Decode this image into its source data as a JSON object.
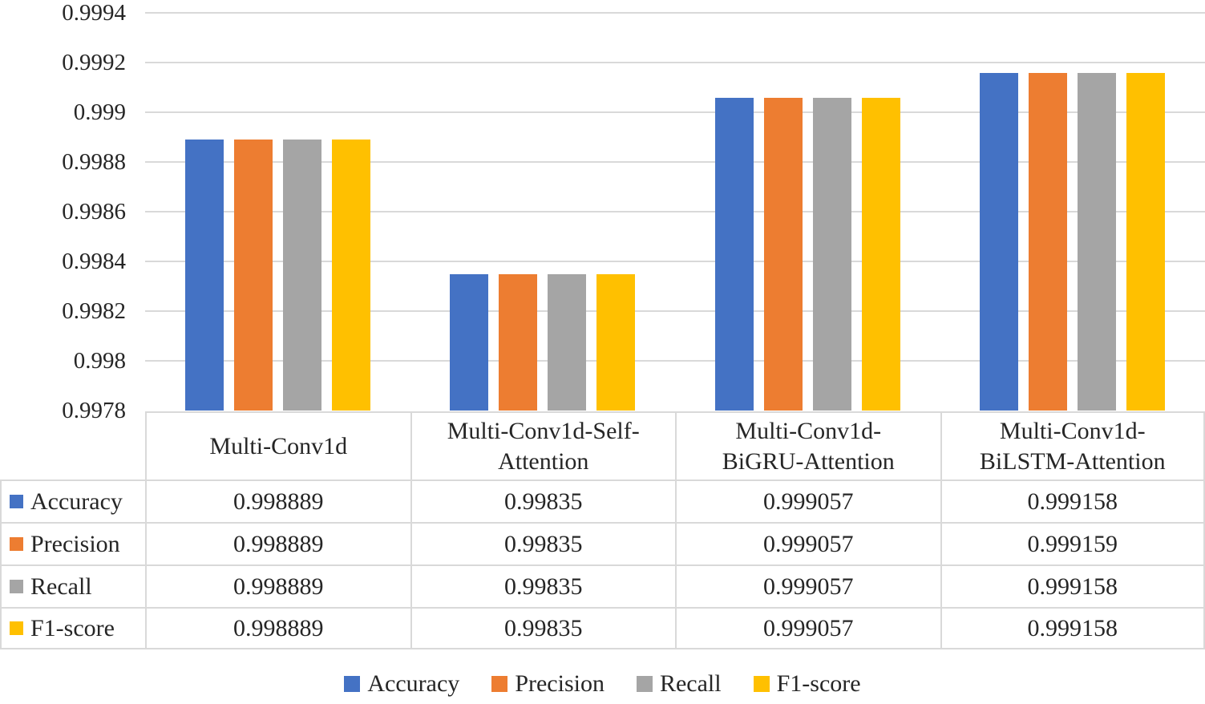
{
  "styles": {
    "text": "#262626",
    "gridline": "#D9D9D9",
    "table-border": "#D9D9D9"
  },
  "chart_data": {
    "type": "bar",
    "title": "",
    "xlabel": "",
    "ylabel": "",
    "grid": true,
    "legend_position": "bottom",
    "categories": [
      "Multi-Conv1d",
      "Multi-Conv1d-Self-Attention",
      "Multi-Conv1d-BiGRU-Attention",
      "Multi-Conv1d-BiLSTM-Attention"
    ],
    "series": [
      {
        "name": "Accuracy",
        "color": "#4472C4",
        "values": [
          0.998889,
          0.99835,
          0.999057,
          0.999158
        ]
      },
      {
        "name": "Precision",
        "color": "#ED7D31",
        "values": [
          0.998889,
          0.99835,
          0.999057,
          0.999159
        ]
      },
      {
        "name": "Recall",
        "color": "#A5A5A5",
        "values": [
          0.998889,
          0.99835,
          0.999057,
          0.999158
        ]
      },
      {
        "name": "F1-score",
        "color": "#FFC000",
        "values": [
          0.998889,
          0.99835,
          0.999057,
          0.999158
        ]
      }
    ],
    "ylim": [
      0.9978,
      0.9994
    ],
    "yticks": [
      "0.9994",
      "0.9992",
      "0.999",
      "0.9988",
      "0.9986",
      "0.9984",
      "0.9982",
      "0.998",
      "0.9978"
    ]
  },
  "table": {
    "columns": [
      "Multi-Conv1d",
      "Multi-Conv1d-Self-Attention",
      "Multi-Conv1d-BiGRU-Attention",
      "Multi-Conv1d-BiLSTM-Attention"
    ],
    "rows": [
      {
        "label": "Accuracy",
        "values": [
          "0.998889",
          "0.99835",
          "0.999057",
          "0.999158"
        ]
      },
      {
        "label": "Precision",
        "values": [
          "0.998889",
          "0.99835",
          "0.999057",
          "0.999159"
        ]
      },
      {
        "label": "Recall",
        "values": [
          "0.998889",
          "0.99835",
          "0.999057",
          "0.999158"
        ]
      },
      {
        "label": "F1-score",
        "values": [
          "0.998889",
          "0.99835",
          "0.999057",
          "0.999158"
        ]
      }
    ]
  },
  "legend": {
    "items": [
      {
        "label": "Accuracy"
      },
      {
        "label": "Precision"
      },
      {
        "label": "Recall"
      },
      {
        "label": "F1-score"
      }
    ]
  }
}
